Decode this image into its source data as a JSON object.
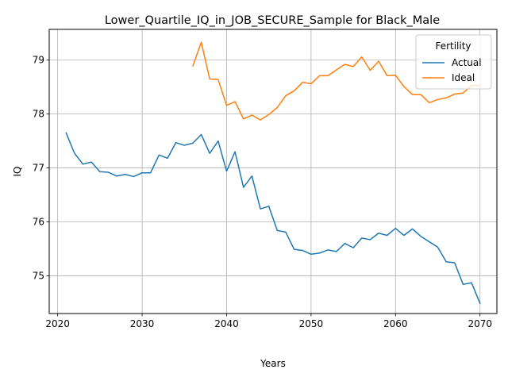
{
  "chart_data": {
    "type": "line",
    "title": "Lower_Quartile_IQ_in_JOB_SECURE_Sample for Black_Male",
    "xlabel": "Years",
    "ylabel": "IQ",
    "xlim": [
      2019,
      2072
    ],
    "ylim": [
      74.3,
      79.57
    ],
    "xticks": [
      2020,
      2030,
      2040,
      2050,
      2060,
      2070
    ],
    "yticks": [
      75,
      76,
      77,
      78,
      79
    ],
    "grid": true,
    "legend": {
      "title": "Fertility",
      "position": "top-right"
    },
    "series": [
      {
        "name": "Actual",
        "color": "#1f77b4",
        "x": [
          2021,
          2022,
          2023,
          2024,
          2025,
          2026,
          2027,
          2028,
          2029,
          2030,
          2031,
          2032,
          2033,
          2034,
          2035,
          2036,
          2037,
          2038,
          2039,
          2040,
          2041,
          2042,
          2043,
          2044,
          2045,
          2046,
          2047,
          2048,
          2049,
          2050,
          2051,
          2052,
          2053,
          2054,
          2055,
          2056,
          2057,
          2058,
          2059,
          2060,
          2061,
          2062,
          2063,
          2064,
          2065,
          2066,
          2067,
          2068,
          2069,
          2070
        ],
        "y": [
          77.65,
          77.27,
          77.07,
          77.11,
          76.93,
          76.92,
          76.85,
          76.88,
          76.84,
          76.91,
          76.91,
          77.24,
          77.18,
          77.47,
          77.42,
          77.46,
          77.62,
          77.27,
          77.5,
          76.94,
          77.3,
          76.64,
          76.85,
          76.24,
          76.29,
          75.84,
          75.81,
          75.49,
          75.47,
          75.4,
          75.42,
          75.48,
          75.45,
          75.6,
          75.52,
          75.7,
          75.67,
          75.79,
          75.75,
          75.88,
          75.75,
          75.87,
          75.73,
          75.63,
          75.53,
          75.26,
          75.24,
          74.84,
          74.87,
          74.49
        ]
      },
      {
        "name": "Ideal",
        "color": "#ff7f0e",
        "x": [
          2036,
          2037,
          2038,
          2039,
          2040,
          2041,
          2042,
          2043,
          2044,
          2045,
          2046,
          2047,
          2048,
          2049,
          2050,
          2051,
          2052,
          2053,
          2054,
          2055,
          2056,
          2057,
          2058,
          2059,
          2060,
          2061,
          2062,
          2063,
          2064,
          2065,
          2066,
          2067,
          2068,
          2069,
          2070
        ],
        "y": [
          78.89,
          79.33,
          78.65,
          78.64,
          78.16,
          78.23,
          77.91,
          77.98,
          77.89,
          77.99,
          78.12,
          78.34,
          78.43,
          78.59,
          78.56,
          78.71,
          78.71,
          78.82,
          78.92,
          78.88,
          79.06,
          78.81,
          78.98,
          78.71,
          78.72,
          78.51,
          78.36,
          78.36,
          78.21,
          78.27,
          78.3,
          78.37,
          78.39,
          78.53,
          78.53
        ]
      }
    ]
  }
}
